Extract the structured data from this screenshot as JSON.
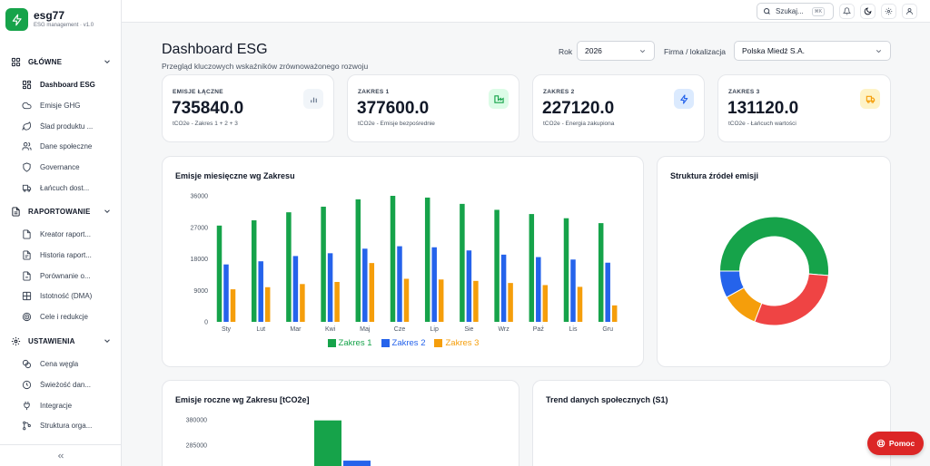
{
  "brand": {
    "name": "esg77",
    "subtitle": "ESG management · v1.0"
  },
  "sidebar": {
    "sections": [
      {
        "label": "GŁÓWNE",
        "icon": "grid-icon",
        "items": [
          {
            "label": "Dashboard ESG",
            "icon": "dashboard-icon",
            "active": true
          },
          {
            "label": "Emisje GHG",
            "icon": "cloud-icon"
          },
          {
            "label": "Ślad produktu ...",
            "icon": "leaf-icon"
          },
          {
            "label": "Dane społeczne",
            "icon": "users-icon"
          },
          {
            "label": "Governance",
            "icon": "shield-icon"
          },
          {
            "label": "Łańcuch dost...",
            "icon": "truck-icon"
          }
        ]
      },
      {
        "label": "RAPORTOWANIE",
        "icon": "document-icon",
        "items": [
          {
            "label": "Kreator raport...",
            "icon": "file-edit-icon"
          },
          {
            "label": "Historia raport...",
            "icon": "file-list-icon"
          },
          {
            "label": "Porównanie o...",
            "icon": "file-compare-icon"
          },
          {
            "label": "Istotność (DMA)",
            "icon": "grid-check-icon"
          },
          {
            "label": "Cele i redukcje",
            "icon": "target-icon"
          }
        ]
      },
      {
        "label": "USTAWIENIA",
        "icon": "gear-icon",
        "items": [
          {
            "label": "Cena węgla",
            "icon": "coins-icon"
          },
          {
            "label": "Świeżość dan...",
            "icon": "clock-icon"
          },
          {
            "label": "Integracje",
            "icon": "plug-icon"
          },
          {
            "label": "Struktura orga...",
            "icon": "org-icon"
          }
        ]
      }
    ],
    "collapse_icon": "double-chevron-left-icon"
  },
  "topbar": {
    "search_placeholder": "Szukaj...",
    "search_shortcut": "⌘K"
  },
  "header": {
    "title": "Dashboard ESG",
    "subtitle": "Przegląd kluczowych wskaźników zrównoważonego rozwoju",
    "year_label": "Rok",
    "year_value": "2026",
    "company_label": "Firma / lokalizacja",
    "company_value": "Polska Miedź S.A."
  },
  "kpis": [
    {
      "label": "EMISJE ŁĄCZNE",
      "value": "735840.0",
      "sub": "tCO2e - Zakres 1 + 2 + 3",
      "icon": "bar-chart-icon",
      "color": "#64748b",
      "bg": "#f1f5f9"
    },
    {
      "label": "ZAKRES 1",
      "value": "377600.0",
      "sub": "tCO2e - Emisje bezpośrednie",
      "icon": "factory-icon",
      "color": "#16a34a",
      "bg": "#dcfce7"
    },
    {
      "label": "ZAKRES 2",
      "value": "227120.0",
      "sub": "tCO2e - Energia zakupiona",
      "icon": "lightning-icon",
      "color": "#2563eb",
      "bg": "#dbeafe"
    },
    {
      "label": "ZAKRES 3",
      "value": "131120.0",
      "sub": "tCO2e - Łańcuch wartości",
      "icon": "truck-icon",
      "color": "#f59e0b",
      "bg": "#fef3c7"
    }
  ],
  "monthly": {
    "title": "Emisje miesięczne wg Zakresu",
    "chart_data": {
      "type": "bar",
      "categories": [
        "Sty",
        "Lut",
        "Mar",
        "Kwi",
        "Maj",
        "Cze",
        "Lip",
        "Sie",
        "Wrz",
        "Paź",
        "Lis",
        "Gru"
      ],
      "yticks": [
        "36000",
        "27000",
        "18000",
        "9000",
        "0"
      ],
      "ylim": [
        0,
        36000
      ],
      "series": [
        {
          "name": "Zakres 1",
          "color": "#16a34a",
          "values": [
            27500,
            29000,
            31300,
            32900,
            35000,
            36000,
            35500,
            33700,
            32000,
            30800,
            29600,
            28200
          ]
        },
        {
          "name": "Zakres 2",
          "color": "#2563eb",
          "values": [
            16400,
            17300,
            18800,
            19600,
            20900,
            21600,
            21300,
            20400,
            19200,
            18500,
            17800,
            16900
          ]
        },
        {
          "name": "Zakres 3",
          "color": "#f59e0b",
          "values": [
            9300,
            9900,
            10800,
            11400,
            16800,
            12300,
            12100,
            11700,
            11100,
            10500,
            10000,
            4700
          ]
        }
      ]
    }
  },
  "sources": {
    "title": "Struktura źródeł emisji",
    "chart_data": {
      "type": "pie",
      "series": [
        {
          "color": "#16a34a",
          "value": 51.3
        },
        {
          "color": "#ef4444",
          "value": 29.6
        },
        {
          "color": "#f59e0b",
          "value": 11.1
        },
        {
          "color": "#2563eb",
          "value": 8.0
        }
      ]
    }
  },
  "annual": {
    "title": "Emisje roczne wg Zakresu [tCO2e]",
    "chart_data": {
      "type": "bar",
      "yticks": [
        "380000",
        "285000"
      ],
      "values": [
        377600,
        227120
      ]
    }
  },
  "social": {
    "title": "Trend danych społecznych (S1)"
  },
  "help": {
    "label": "Pomoc"
  }
}
